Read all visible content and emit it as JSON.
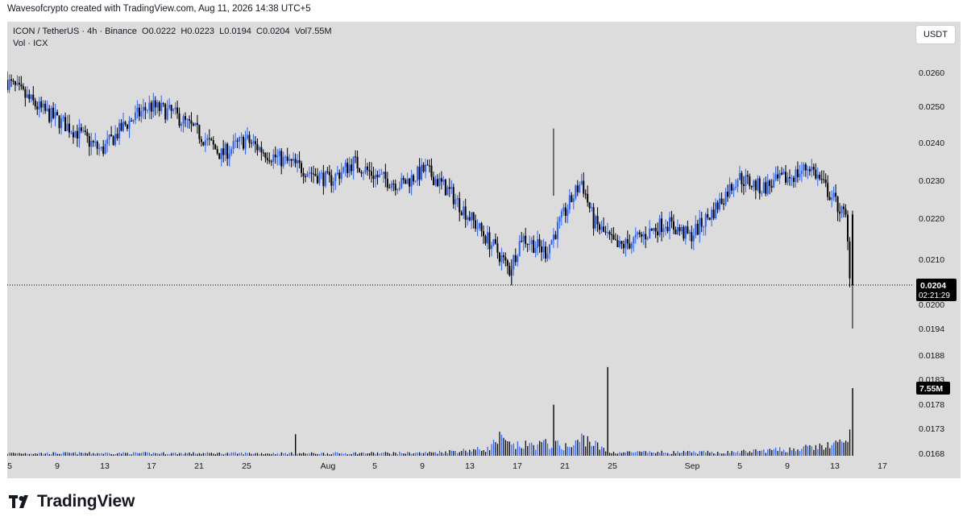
{
  "credit": "Wavesofcrypto created with TradingView.com, Aug 11, 2026 14:38 UTC+5",
  "legend": {
    "symbol": "ICON / TetherUS · 4h · Binance",
    "open_label": "O",
    "open": "0.0222",
    "high_label": "H",
    "high": "0.0223",
    "low_label": "L",
    "low": "0.0194",
    "close_label": "C",
    "close": "0.0204",
    "vol_label": "Vol",
    "vol": "7.55M",
    "indicator": "Vol · ICX"
  },
  "currency_button": "USDT",
  "footer_brand": "TradingView",
  "colors": {
    "background": "#dcdcdc",
    "up": "#2962ff",
    "down": "#000000",
    "badge": "#000000"
  },
  "chart_data": {
    "type": "candlestick",
    "timeframe": "4h",
    "price_axis_ticks": [
      "0.0260",
      "0.0250",
      "0.0240",
      "0.0230",
      "0.0220",
      "0.0210",
      "0.0200",
      "0.0194",
      "0.0188",
      "0.0183",
      "0.0178",
      "0.0173",
      "0.0168"
    ],
    "x_axis_ticks": [
      "5",
      "9",
      "13",
      "17",
      "21",
      "25",
      "Aug",
      "5",
      "9",
      "13",
      "17",
      "21",
      "25",
      "Sep",
      "5",
      "9",
      "13",
      "17"
    ],
    "last_price": "0.0204",
    "countdown": "02:21:29",
    "last_volume": "7.55M",
    "price_path": [
      [
        0,
        0.0258
      ],
      [
        3,
        0.025
      ],
      [
        6,
        0.0244
      ],
      [
        8,
        0.0239
      ],
      [
        10,
        0.0246
      ],
      [
        12,
        0.0251
      ],
      [
        14,
        0.0249
      ],
      [
        16,
        0.0244
      ],
      [
        18,
        0.0238
      ],
      [
        20,
        0.0242
      ],
      [
        22,
        0.0238
      ],
      [
        25,
        0.0234
      ],
      [
        27,
        0.0231
      ],
      [
        29,
        0.0236
      ],
      [
        31,
        0.0232
      ],
      [
        33,
        0.023
      ],
      [
        35,
        0.0234
      ],
      [
        37,
        0.0228
      ],
      [
        39,
        0.022
      ],
      [
        41,
        0.0212
      ],
      [
        42,
        0.0207
      ],
      [
        43,
        0.0216
      ],
      [
        45,
        0.0212
      ],
      [
        47,
        0.0225
      ],
      [
        48,
        0.0231
      ],
      [
        49,
        0.022
      ],
      [
        51,
        0.0213
      ],
      [
        53,
        0.0216
      ],
      [
        55,
        0.022
      ],
      [
        57,
        0.0216
      ],
      [
        59,
        0.0223
      ],
      [
        61,
        0.0232
      ],
      [
        63,
        0.0229
      ],
      [
        66,
        0.0233
      ],
      [
        67,
        0.0235
      ],
      [
        69,
        0.0226
      ],
      [
        70,
        0.0221
      ],
      [
        70.4,
        0.0204
      ]
    ],
    "volume_profile": [
      [
        0,
        0.3
      ],
      [
        10,
        0.3
      ],
      [
        25,
        0.28
      ],
      [
        35,
        0.35
      ],
      [
        40,
        0.8
      ],
      [
        41,
        2.0
      ],
      [
        42,
        1.1
      ],
      [
        45,
        1.4
      ],
      [
        47,
        1.0
      ],
      [
        48,
        2.2
      ],
      [
        50,
        0.4
      ],
      [
        60,
        0.4
      ],
      [
        66,
        0.8
      ],
      [
        69,
        1.3
      ],
      [
        70,
        1.6
      ],
      [
        70.4,
        7.55
      ]
    ],
    "volume_spikes": [
      [
        24,
        2.4
      ],
      [
        45.5,
        5.7
      ],
      [
        50,
        9.9
      ]
    ]
  }
}
